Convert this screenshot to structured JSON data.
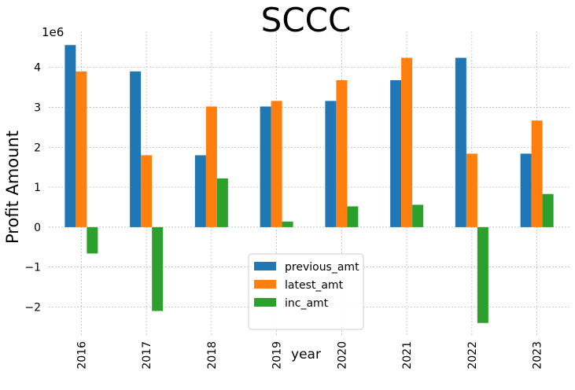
{
  "chart_data": {
    "type": "bar",
    "title": "SCCC",
    "xlabel": "year",
    "ylabel": "Profit Amount",
    "y_offset_label": "1e6",
    "y_scale": 1000000,
    "categories": [
      "2016",
      "2017",
      "2018",
      "2019",
      "2020",
      "2021",
      "2022",
      "2023"
    ],
    "ylim": [
      -2.7,
      4.9
    ],
    "yticks": [
      -2,
      -1,
      0,
      1,
      2,
      3,
      4
    ],
    "ytick_labels": [
      "−2",
      "−1",
      "0",
      "1",
      "2",
      "3",
      "4"
    ],
    "grid": true,
    "legend_placement": "lower center",
    "series": [
      {
        "name": "previous_amt",
        "color": "#1f77b4",
        "values": [
          4.56,
          3.9,
          1.8,
          3.02,
          3.16,
          3.68,
          4.24,
          1.84
        ]
      },
      {
        "name": "latest_amt",
        "color": "#ff7f0e",
        "values": [
          3.9,
          1.8,
          3.02,
          3.16,
          3.68,
          4.24,
          1.84,
          2.67
        ]
      },
      {
        "name": "inc_amt",
        "color": "#2ca02c",
        "values": [
          -0.66,
          -2.1,
          1.22,
          0.14,
          0.52,
          0.56,
          -2.4,
          0.83
        ]
      }
    ]
  }
}
